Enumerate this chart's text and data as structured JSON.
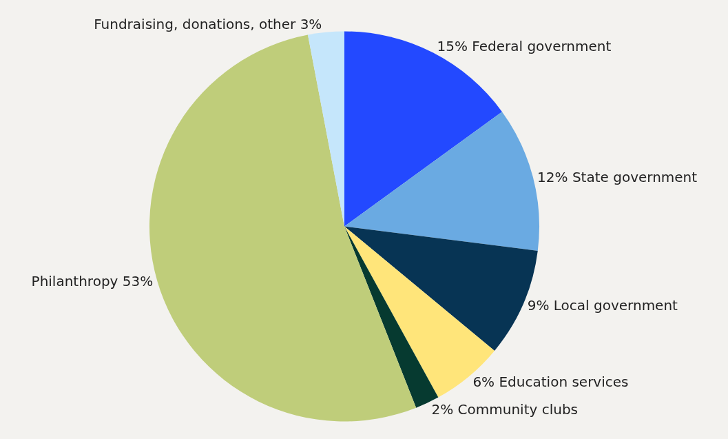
{
  "chart_data": {
    "type": "pie",
    "categories": [
      "Federal government",
      "State government",
      "Local government",
      "Education services",
      "Community clubs",
      "Philanthropy",
      "Fundraising, donations, other"
    ],
    "values": [
      15,
      12,
      9,
      6,
      2,
      53,
      3
    ],
    "value_labels": [
      "15%",
      "12%",
      "9%",
      "6%",
      "2%",
      "53%",
      "3%"
    ],
    "colors": [
      "#2349ff",
      "#6aaae2",
      "#073454",
      "#ffe57a",
      "#063a30",
      "#bfcd7a",
      "#c5e6fb"
    ],
    "legend": false
  }
}
